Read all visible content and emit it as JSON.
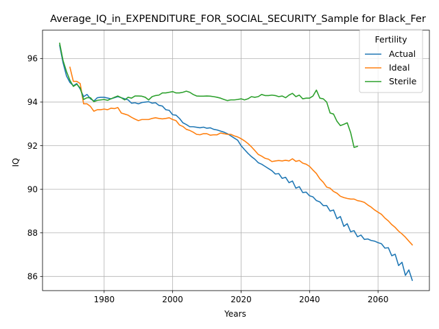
{
  "chart_data": {
    "type": "line",
    "title": "Average_IQ_in_EXPENDITURE_FOR_SOCIAL_SECURITY_Sample for Black_Fer",
    "xlabel": "Years",
    "ylabel": "IQ",
    "xlim": [
      1962,
      2075
    ],
    "ylim": [
      85.35,
      97.3
    ],
    "xticks": [
      1980,
      2000,
      2020,
      2040,
      2060
    ],
    "yticks": [
      86,
      88,
      90,
      92,
      94,
      96
    ],
    "grid": true,
    "legend": {
      "title": "Fertility",
      "placement": "top-right"
    },
    "series": [
      {
        "name": "Actual",
        "color": "#1f77b4",
        "points": [
          [
            1967,
            96.6
          ],
          [
            1968,
            95.8
          ],
          [
            1969,
            95.2
          ],
          [
            1970,
            94.9
          ],
          [
            1971,
            94.75
          ],
          [
            1972,
            94.85
          ],
          [
            1973,
            94.6
          ],
          [
            1974,
            94.25
          ],
          [
            1975,
            94.35
          ],
          [
            1976,
            94.15
          ],
          [
            1977,
            94.05
          ],
          [
            1978,
            94.2
          ],
          [
            1979,
            94.22
          ],
          [
            1980,
            94.22
          ],
          [
            1982,
            94.15
          ],
          [
            1984,
            94.25
          ],
          [
            1986,
            94.15
          ],
          [
            1987,
            94.1
          ],
          [
            1988,
            93.95
          ],
          [
            1989,
            93.97
          ],
          [
            1990,
            93.92
          ],
          [
            1991,
            93.98
          ],
          [
            1992,
            94.0
          ],
          [
            1993,
            94.02
          ],
          [
            1994,
            93.95
          ],
          [
            1995,
            93.97
          ],
          [
            1996,
            93.85
          ],
          [
            1997,
            93.82
          ],
          [
            1998,
            93.65
          ],
          [
            1999,
            93.62
          ],
          [
            2000,
            93.42
          ],
          [
            2001,
            93.4
          ],
          [
            2002,
            93.25
          ],
          [
            2003,
            93.05
          ],
          [
            2004,
            92.97
          ],
          [
            2005,
            92.87
          ],
          [
            2006,
            92.87
          ],
          [
            2008,
            92.82
          ],
          [
            2009,
            92.85
          ],
          [
            2010,
            92.8
          ],
          [
            2011,
            92.82
          ],
          [
            2012,
            92.75
          ],
          [
            2013,
            92.72
          ],
          [
            2014,
            92.67
          ],
          [
            2015,
            92.62
          ],
          [
            2016,
            92.55
          ],
          [
            2017,
            92.45
          ],
          [
            2018,
            92.35
          ],
          [
            2019,
            92.25
          ],
          [
            2020,
            92.0
          ],
          [
            2021,
            91.82
          ],
          [
            2022,
            91.65
          ],
          [
            2023,
            91.5
          ],
          [
            2024,
            91.38
          ],
          [
            2025,
            91.22
          ],
          [
            2026,
            91.15
          ],
          [
            2027,
            91.05
          ],
          [
            2028,
            90.95
          ],
          [
            2029,
            90.85
          ],
          [
            2030,
            90.7
          ],
          [
            2031,
            90.72
          ],
          [
            2032,
            90.5
          ],
          [
            2033,
            90.55
          ],
          [
            2034,
            90.3
          ],
          [
            2035,
            90.38
          ],
          [
            2036,
            90.05
          ],
          [
            2037,
            90.12
          ],
          [
            2038,
            89.85
          ],
          [
            2039,
            89.87
          ],
          [
            2040,
            89.7
          ],
          [
            2041,
            89.65
          ],
          [
            2042,
            89.48
          ],
          [
            2043,
            89.42
          ],
          [
            2044,
            89.25
          ],
          [
            2045,
            89.25
          ],
          [
            2046,
            89.0
          ],
          [
            2047,
            89.05
          ],
          [
            2048,
            88.65
          ],
          [
            2049,
            88.75
          ],
          [
            2050,
            88.3
          ],
          [
            2051,
            88.42
          ],
          [
            2052,
            88.05
          ],
          [
            2053,
            88.1
          ],
          [
            2054,
            87.82
          ],
          [
            2055,
            87.9
          ],
          [
            2056,
            87.7
          ],
          [
            2057,
            87.72
          ],
          [
            2058,
            87.65
          ],
          [
            2059,
            87.62
          ],
          [
            2060,
            87.55
          ],
          [
            2061,
            87.5
          ],
          [
            2062,
            87.3
          ],
          [
            2063,
            87.32
          ],
          [
            2064,
            86.95
          ],
          [
            2065,
            87.02
          ],
          [
            2066,
            86.5
          ],
          [
            2067,
            86.65
          ],
          [
            2068,
            86.05
          ],
          [
            2069,
            86.3
          ],
          [
            2070,
            85.82
          ]
        ]
      },
      {
        "name": "Ideal",
        "color": "#ff7f0e",
        "points": [
          [
            1970,
            95.6
          ],
          [
            1971,
            94.95
          ],
          [
            1972,
            94.95
          ],
          [
            1973,
            94.85
          ],
          [
            1974,
            93.92
          ],
          [
            1975,
            93.92
          ],
          [
            1976,
            93.8
          ],
          [
            1977,
            93.58
          ],
          [
            1978,
            93.65
          ],
          [
            1979,
            93.65
          ],
          [
            1980,
            93.68
          ],
          [
            1981,
            93.65
          ],
          [
            1982,
            93.72
          ],
          [
            1983,
            93.7
          ],
          [
            1984,
            93.75
          ],
          [
            1985,
            93.5
          ],
          [
            1986,
            93.45
          ],
          [
            1987,
            93.4
          ],
          [
            1988,
            93.3
          ],
          [
            1989,
            93.22
          ],
          [
            1990,
            93.15
          ],
          [
            1991,
            93.2
          ],
          [
            1992,
            93.2
          ],
          [
            1993,
            93.2
          ],
          [
            1994,
            93.25
          ],
          [
            1995,
            93.28
          ],
          [
            1996,
            93.25
          ],
          [
            1997,
            93.23
          ],
          [
            1998,
            93.25
          ],
          [
            1999,
            93.28
          ],
          [
            2000,
            93.2
          ],
          [
            2001,
            93.15
          ],
          [
            2002,
            92.95
          ],
          [
            2003,
            92.88
          ],
          [
            2004,
            92.75
          ],
          [
            2005,
            92.7
          ],
          [
            2006,
            92.62
          ],
          [
            2007,
            92.52
          ],
          [
            2008,
            92.5
          ],
          [
            2009,
            92.55
          ],
          [
            2010,
            92.55
          ],
          [
            2011,
            92.48
          ],
          [
            2012,
            92.5
          ],
          [
            2013,
            92.5
          ],
          [
            2014,
            92.58
          ],
          [
            2015,
            92.55
          ],
          [
            2016,
            92.52
          ],
          [
            2017,
            92.52
          ],
          [
            2018,
            92.45
          ],
          [
            2019,
            92.4
          ],
          [
            2020,
            92.32
          ],
          [
            2021,
            92.22
          ],
          [
            2022,
            92.1
          ],
          [
            2023,
            91.95
          ],
          [
            2024,
            91.78
          ],
          [
            2025,
            91.6
          ],
          [
            2026,
            91.52
          ],
          [
            2027,
            91.42
          ],
          [
            2028,
            91.38
          ],
          [
            2029,
            91.27
          ],
          [
            2030,
            91.3
          ],
          [
            2031,
            91.32
          ],
          [
            2032,
            91.3
          ],
          [
            2033,
            91.33
          ],
          [
            2034,
            91.3
          ],
          [
            2035,
            91.4
          ],
          [
            2036,
            91.28
          ],
          [
            2037,
            91.32
          ],
          [
            2038,
            91.2
          ],
          [
            2039,
            91.15
          ],
          [
            2040,
            91.05
          ],
          [
            2041,
            90.88
          ],
          [
            2042,
            90.72
          ],
          [
            2043,
            90.48
          ],
          [
            2044,
            90.32
          ],
          [
            2045,
            90.1
          ],
          [
            2046,
            90.05
          ],
          [
            2047,
            89.9
          ],
          [
            2048,
            89.82
          ],
          [
            2049,
            89.68
          ],
          [
            2050,
            89.62
          ],
          [
            2051,
            89.58
          ],
          [
            2052,
            89.55
          ],
          [
            2053,
            89.55
          ],
          [
            2054,
            89.48
          ],
          [
            2055,
            89.45
          ],
          [
            2056,
            89.4
          ],
          [
            2057,
            89.28
          ],
          [
            2058,
            89.18
          ],
          [
            2059,
            89.05
          ],
          [
            2060,
            88.95
          ],
          [
            2061,
            88.85
          ],
          [
            2062,
            88.68
          ],
          [
            2063,
            88.55
          ],
          [
            2064,
            88.38
          ],
          [
            2065,
            88.25
          ],
          [
            2066,
            88.08
          ],
          [
            2067,
            87.95
          ],
          [
            2068,
            87.8
          ],
          [
            2069,
            87.62
          ],
          [
            2070,
            87.45
          ]
        ]
      },
      {
        "name": "Sterile",
        "color": "#2ca02c",
        "points": [
          [
            1967,
            96.7
          ],
          [
            1968,
            95.9
          ],
          [
            1969,
            95.4
          ],
          [
            1970,
            95.0
          ],
          [
            1971,
            94.72
          ],
          [
            1972,
            94.82
          ],
          [
            1973,
            94.65
          ],
          [
            1974,
            94.12
          ],
          [
            1975,
            94.2
          ],
          [
            1976,
            94.2
          ],
          [
            1977,
            94.02
          ],
          [
            1978,
            94.08
          ],
          [
            1979,
            94.1
          ],
          [
            1980,
            94.12
          ],
          [
            1981,
            94.08
          ],
          [
            1982,
            94.15
          ],
          [
            1983,
            94.22
          ],
          [
            1984,
            94.28
          ],
          [
            1985,
            94.2
          ],
          [
            1986,
            94.1
          ],
          [
            1987,
            94.22
          ],
          [
            1988,
            94.18
          ],
          [
            1989,
            94.28
          ],
          [
            1990,
            94.28
          ],
          [
            1991,
            94.27
          ],
          [
            1992,
            94.22
          ],
          [
            1993,
            94.1
          ],
          [
            1994,
            94.25
          ],
          [
            1995,
            94.3
          ],
          [
            1996,
            94.32
          ],
          [
            1997,
            94.42
          ],
          [
            1998,
            94.42
          ],
          [
            1999,
            94.45
          ],
          [
            2000,
            94.48
          ],
          [
            2001,
            94.42
          ],
          [
            2002,
            94.42
          ],
          [
            2003,
            94.45
          ],
          [
            2004,
            94.5
          ],
          [
            2005,
            94.45
          ],
          [
            2006,
            94.35
          ],
          [
            2007,
            94.28
          ],
          [
            2008,
            94.27
          ],
          [
            2009,
            94.27
          ],
          [
            2010,
            94.28
          ],
          [
            2011,
            94.27
          ],
          [
            2012,
            94.25
          ],
          [
            2013,
            94.22
          ],
          [
            2014,
            94.18
          ],
          [
            2015,
            94.12
          ],
          [
            2016,
            94.07
          ],
          [
            2017,
            94.1
          ],
          [
            2018,
            94.1
          ],
          [
            2019,
            94.12
          ],
          [
            2020,
            94.15
          ],
          [
            2021,
            94.1
          ],
          [
            2022,
            94.15
          ],
          [
            2023,
            94.25
          ],
          [
            2024,
            94.22
          ],
          [
            2025,
            94.25
          ],
          [
            2026,
            94.35
          ],
          [
            2027,
            94.3
          ],
          [
            2028,
            94.3
          ],
          [
            2029,
            94.32
          ],
          [
            2030,
            94.3
          ],
          [
            2031,
            94.25
          ],
          [
            2032,
            94.28
          ],
          [
            2033,
            94.2
          ],
          [
            2034,
            94.32
          ],
          [
            2035,
            94.4
          ],
          [
            2036,
            94.25
          ],
          [
            2037,
            94.32
          ],
          [
            2038,
            94.15
          ],
          [
            2039,
            94.18
          ],
          [
            2040,
            94.18
          ],
          [
            2041,
            94.28
          ],
          [
            2042,
            94.55
          ],
          [
            2043,
            94.18
          ],
          [
            2044,
            94.15
          ],
          [
            2045,
            94.0
          ],
          [
            2046,
            93.5
          ],
          [
            2047,
            93.45
          ],
          [
            2048,
            93.12
          ],
          [
            2049,
            92.92
          ],
          [
            2050,
            92.98
          ],
          [
            2051,
            93.05
          ],
          [
            2052,
            92.6
          ],
          [
            2053,
            91.92
          ],
          [
            2054,
            91.97
          ]
        ]
      }
    ]
  }
}
